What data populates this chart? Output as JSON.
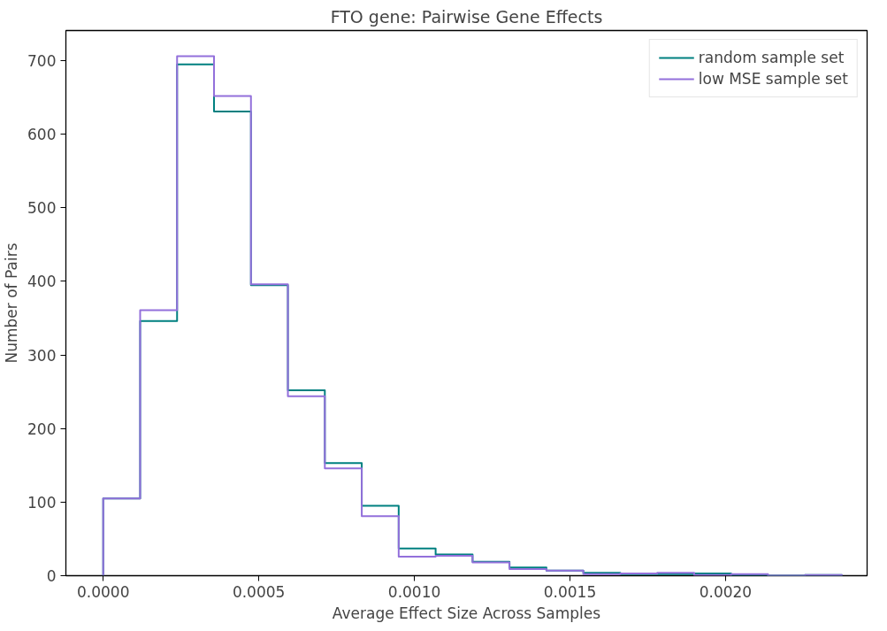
{
  "chart_data": {
    "type": "histogram",
    "title": "FTO gene: Pairwise Gene Effects",
    "xlabel": "Average Effect Size Across Samples",
    "ylabel": "Number of Pairs",
    "bins": [
      0,
      0.0001187,
      0.0002374,
      0.0003561,
      0.0004748,
      0.0005935,
      0.0007122,
      0.0008309,
      0.0009496,
      0.0010683,
      0.001187,
      0.0013057,
      0.0014244,
      0.0015431,
      0.0016618,
      0.0017805,
      0.0018992,
      0.0020179,
      0.0021366,
      0.0022553,
      0.002374
    ],
    "series": [
      {
        "name": "random sample set",
        "color": "#008080",
        "values": [
          105,
          346,
          695,
          631,
          395,
          252,
          153,
          95,
          37,
          29,
          19,
          11,
          7,
          4,
          2,
          2,
          3,
          1,
          0,
          1
        ]
      },
      {
        "name": "low MSE sample set",
        "color": "#9370db",
        "values": [
          105,
          361,
          706,
          652,
          396,
          244,
          146,
          81,
          26,
          27,
          18,
          9,
          7,
          2,
          3,
          4,
          1,
          2,
          0,
          1
        ]
      }
    ],
    "xlim": [
      -0.00012,
      0.002455
    ],
    "ylim": [
      0,
      741
    ],
    "xticks": [
      {
        "value": 0,
        "label": "0.0000"
      },
      {
        "value": 0.0005,
        "label": "0.0005"
      },
      {
        "value": 0.001,
        "label": "0.0010"
      },
      {
        "value": 0.0015,
        "label": "0.0015"
      },
      {
        "value": 0.002,
        "label": "0.0020"
      }
    ],
    "yticks": [
      0,
      100,
      200,
      300,
      400,
      500,
      600,
      700
    ],
    "grid": false,
    "legend": "top right"
  }
}
